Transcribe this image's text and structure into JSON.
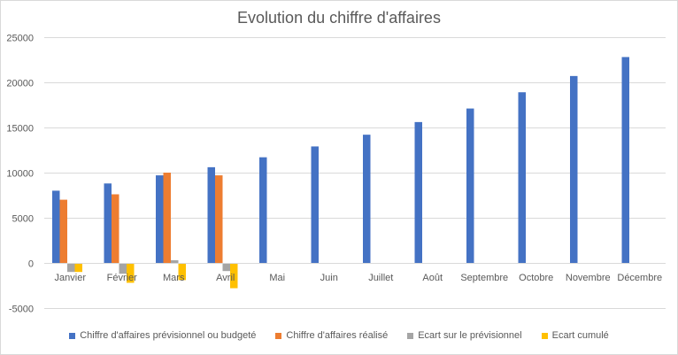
{
  "chart_data": {
    "type": "bar",
    "title": "Evolution du chiffre d'affaires",
    "xlabel": "",
    "ylabel": "",
    "ylim": [
      -5000,
      25000
    ],
    "yticks": [
      25000,
      20000,
      15000,
      10000,
      5000,
      0,
      -5000
    ],
    "grid": true,
    "legend_position": "bottom",
    "categories": [
      "Janvier",
      "Février",
      "Mars",
      "Avril",
      "Mai",
      "Juin",
      "Juillet",
      "Août",
      "Septembre",
      "Octobre",
      "Novembre",
      "Décembre"
    ],
    "series": [
      {
        "name": "Chiffre d'affaires prévisionnel ou budgeté",
        "color": "#4472c4",
        "values": [
          8000,
          8800,
          9700,
          10600,
          11700,
          12900,
          14200,
          15600,
          17100,
          18900,
          20700,
          22800
        ]
      },
      {
        "name": "Chiffre d'affaires réalisé",
        "color": "#ed7d31",
        "values": [
          7000,
          7600,
          10000,
          9700,
          null,
          null,
          null,
          null,
          null,
          null,
          null,
          null
        ]
      },
      {
        "name": "Ecart sur le prévisionnel",
        "color": "#a5a5a5",
        "values": [
          -1000,
          -1200,
          300,
          -900,
          null,
          null,
          null,
          null,
          null,
          null,
          null,
          null
        ]
      },
      {
        "name": "Ecart cumulé",
        "color": "#ffc000",
        "values": [
          -1000,
          -2200,
          -1900,
          -2800,
          null,
          null,
          null,
          null,
          null,
          null,
          null,
          null
        ]
      }
    ]
  }
}
